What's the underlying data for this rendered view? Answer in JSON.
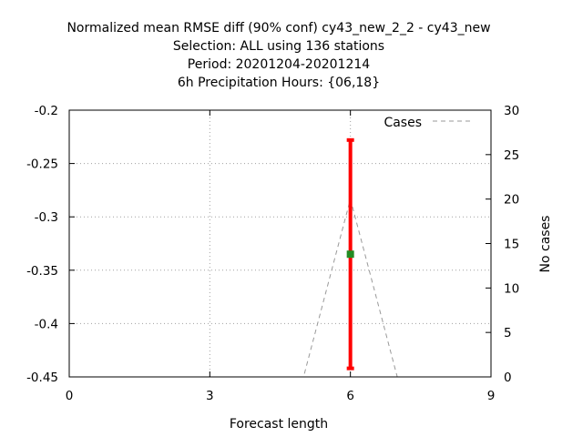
{
  "chart_data": {
    "type": "line",
    "title_lines": [
      "Normalized mean RMSE diff (90% conf) cy43_new_2_2 - cy43_new",
      "Selection: ALL using   136 stations",
      "Period: 20201204-20201214",
      "6h Precipitation   Hours: {06,18}"
    ],
    "xlabel": "Forecast length",
    "ylabel": "",
    "y2label": "No cases",
    "xlim": [
      0,
      9
    ],
    "ylim": [
      -0.45,
      -0.2
    ],
    "y2lim": [
      0,
      30
    ],
    "x_ticks": [
      "0",
      "3",
      "6",
      "9"
    ],
    "y_ticks": [
      "-0.2",
      "-0.25",
      "-0.3",
      "-0.35",
      "-0.4",
      "-0.45"
    ],
    "y2_ticks": [
      "0",
      "5",
      "10",
      "15",
      "20",
      "25",
      "30"
    ],
    "grid": true,
    "legend_position": "top-right",
    "series": [
      {
        "name": "Cases",
        "axis": "y2",
        "style": "dashed",
        "color": "#999999",
        "x": [
          0,
          1,
          2,
          3,
          4,
          5,
          6,
          7,
          8,
          9
        ],
        "values": [
          0,
          0,
          0,
          0,
          0,
          0,
          20,
          0,
          0,
          0
        ]
      }
    ],
    "errorbars": [
      {
        "x": 6,
        "mean": -0.335,
        "low": -0.442,
        "high": -0.228,
        "bar_color": "#ff0000",
        "point_color": "#228b22"
      }
    ]
  }
}
